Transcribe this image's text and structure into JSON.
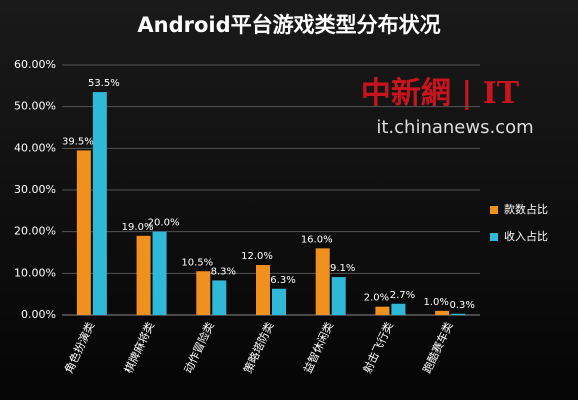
{
  "chart_data": {
    "type": "bar",
    "title": "Android平台游戏类型分布状况",
    "watermark": [
      "中新網 | IT",
      "it.chinanews.com"
    ],
    "categories": [
      "角色扮演类",
      "棋牌麻将类",
      "动作冒险类",
      "策略塔防类",
      "益智休闲类",
      "射击飞行类",
      "跑酷赛车类"
    ],
    "series": [
      {
        "name": "款数占比",
        "color": "#f0901e",
        "values": [
          39.5,
          19.0,
          10.5,
          12.0,
          16.0,
          2.0,
          1.0
        ],
        "value_labels": [
          "39.5%",
          "19.0%",
          "10.5%",
          "12.0%",
          "16.0%",
          "2.0%",
          "1.0%"
        ]
      },
      {
        "name": "收入占比",
        "color": "#2fb8d8",
        "values": [
          53.5,
          20.0,
          8.3,
          6.3,
          9.1,
          2.7,
          0.3
        ],
        "value_labels": [
          "53.5%",
          "20.0%",
          "8.3%",
          "6.3%",
          "9.1%",
          "2.7%",
          "0.3%"
        ]
      }
    ],
    "ylim": [
      0,
      60
    ],
    "yticks": [
      {
        "value": 0,
        "label": "0.00%"
      },
      {
        "value": 10,
        "label": "10.00%"
      },
      {
        "value": 20,
        "label": "20.00%"
      },
      {
        "value": 30,
        "label": "30.00%"
      },
      {
        "value": 40,
        "label": "40.00%"
      },
      {
        "value": 50,
        "label": "50.00%"
      },
      {
        "value": 60,
        "label": "60.00%"
      }
    ],
    "grid": true,
    "legend": "right"
  }
}
